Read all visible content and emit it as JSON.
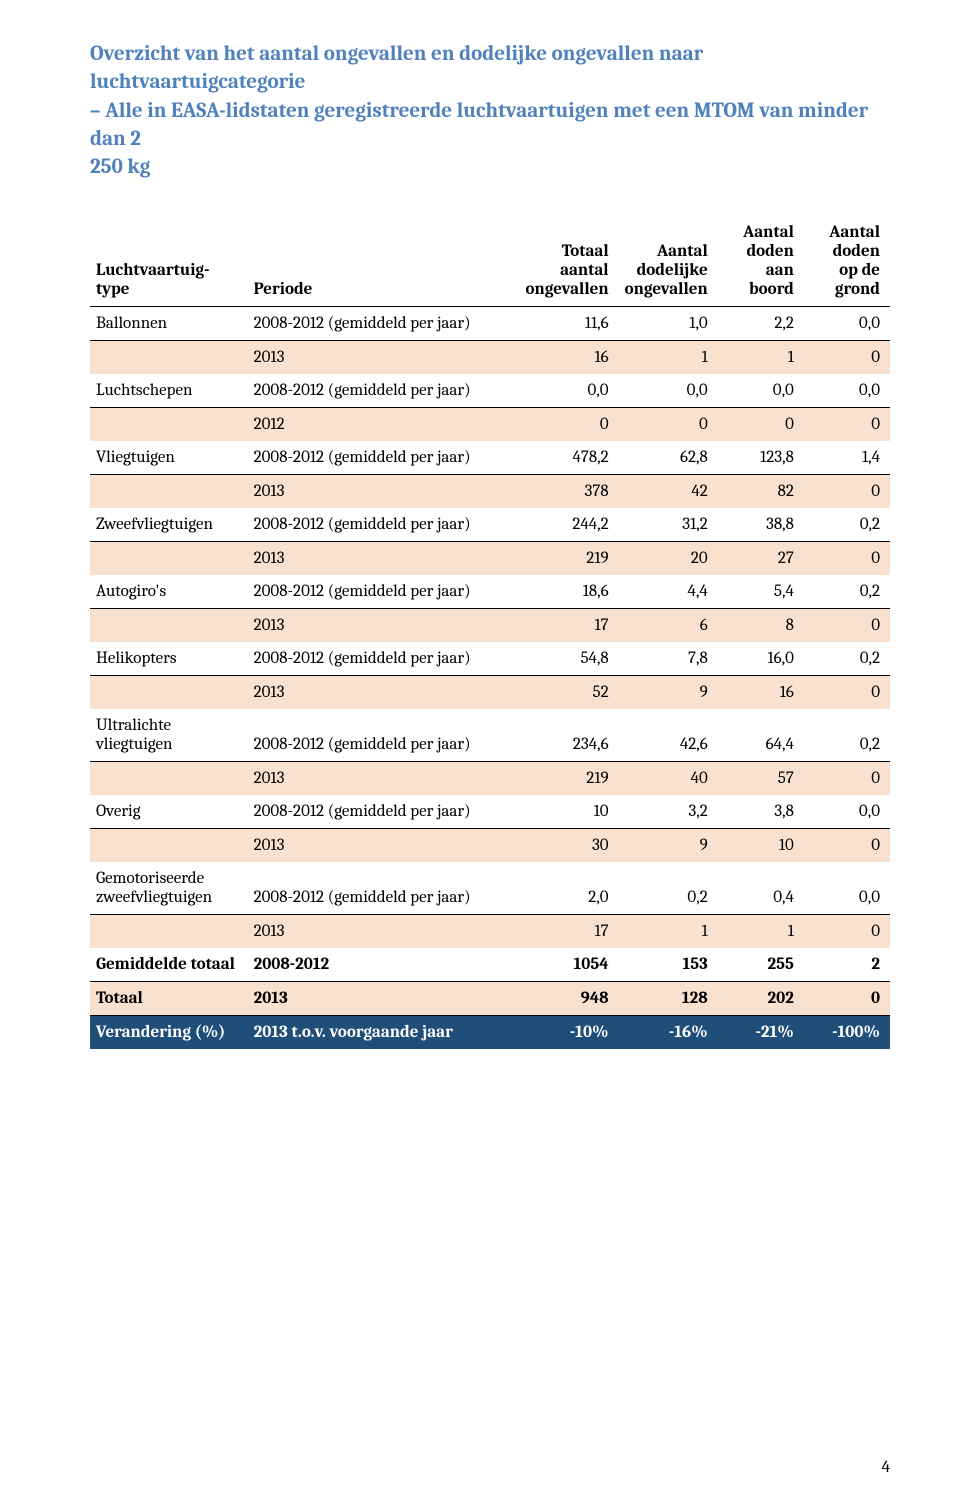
{
  "title_lines": [
    "Overzicht van het aantal ongevallen en dodelijke ongevallen naar luchtvaartuigcategorie",
    "– Alle in EASA-lidstaten geregistreerde luchtvaartuigen met een MTOM van minder dan 2",
    "250 kg"
  ],
  "columns": {
    "type": "Luchtvaartuig-\ntype",
    "periode": "Periode",
    "totaal": "Totaal\naantal\nongevallen",
    "dodelijke": "Aantal\ndodelijke\nongevallen",
    "doden_boord": "Aantal\ndoden\naan\nboord",
    "doden_grond": "Aantal\ndoden\nop de\ngrond"
  },
  "rows": [
    {
      "type": "Ballonnen",
      "periode": "2008-2012 (gemiddeld per jaar)",
      "totaal": "11,6",
      "dodelijke": "1,0",
      "doden_boord": "2,2",
      "doden_grond": "0,0",
      "hi": false,
      "rule": true
    },
    {
      "type": "",
      "periode": "2013",
      "totaal": "16",
      "dodelijke": "1",
      "doden_boord": "1",
      "doden_grond": "0",
      "hi": true,
      "rule": false
    },
    {
      "type": "Luchtschepen",
      "periode": "2008-2012 (gemiddeld per jaar)",
      "totaal": "0,0",
      "dodelijke": "0,0",
      "doden_boord": "0,0",
      "doden_grond": "0,0",
      "hi": false,
      "rule": true
    },
    {
      "type": "",
      "periode": "2012",
      "totaal": "0",
      "dodelijke": "0",
      "doden_boord": "0",
      "doden_grond": "0",
      "hi": true,
      "rule": false
    },
    {
      "type": "Vliegtuigen",
      "periode": "2008-2012 (gemiddeld per jaar)",
      "totaal": "478,2",
      "dodelijke": "62,8",
      "doden_boord": "123,8",
      "doden_grond": "1,4",
      "hi": false,
      "rule": true
    },
    {
      "type": "",
      "periode": "2013",
      "totaal": "378",
      "dodelijke": "42",
      "doden_boord": "82",
      "doden_grond": "0",
      "hi": true,
      "rule": false
    },
    {
      "type": "Zweefvliegtuigen",
      "periode": "2008-2012 (gemiddeld per jaar)",
      "totaal": "244,2",
      "dodelijke": "31,2",
      "doden_boord": "38,8",
      "doden_grond": "0,2",
      "hi": false,
      "rule": true
    },
    {
      "type": "",
      "periode": "2013",
      "totaal": "219",
      "dodelijke": "20",
      "doden_boord": "27",
      "doden_grond": "0",
      "hi": true,
      "rule": false
    },
    {
      "type": "Autogiro's",
      "periode": "2008-2012 (gemiddeld per jaar)",
      "totaal": "18,6",
      "dodelijke": "4,4",
      "doden_boord": "5,4",
      "doden_grond": "0,2",
      "hi": false,
      "rule": true
    },
    {
      "type": "",
      "periode": "2013",
      "totaal": "17",
      "dodelijke": "6",
      "doden_boord": "8",
      "doden_grond": "0",
      "hi": true,
      "rule": false
    },
    {
      "type": "Helikopters",
      "periode": "2008-2012 (gemiddeld per jaar)",
      "totaal": "54,8",
      "dodelijke": "7,8",
      "doden_boord": "16,0",
      "doden_grond": "0,2",
      "hi": false,
      "rule": true
    },
    {
      "type": "",
      "periode": "2013",
      "totaal": "52",
      "dodelijke": "9",
      "doden_boord": "16",
      "doden_grond": "0",
      "hi": true,
      "rule": false
    },
    {
      "type": "Ultralichte vliegtuigen",
      "periode": "2008-2012 (gemiddeld per jaar)",
      "totaal": "234,6",
      "dodelijke": "42,6",
      "doden_boord": "64,4",
      "doden_grond": "0,2",
      "hi": false,
      "rule": true
    },
    {
      "type": "",
      "periode": "2013",
      "totaal": "219",
      "dodelijke": "40",
      "doden_boord": "57",
      "doden_grond": "0",
      "hi": true,
      "rule": false
    },
    {
      "type": "Overig",
      "periode": "2008-2012 (gemiddeld per jaar)",
      "totaal": "10",
      "dodelijke": "3,2",
      "doden_boord": "3,8",
      "doden_grond": "0,0",
      "hi": false,
      "rule": true
    },
    {
      "type": "",
      "periode": "2013",
      "totaal": "30",
      "dodelijke": "9",
      "doden_boord": "10",
      "doden_grond": "0",
      "hi": true,
      "rule": false
    },
    {
      "type": "Gemotoriseerde zweefvliegtuigen",
      "periode": "2008-2012 (gemiddeld per jaar)",
      "totaal": "2,0",
      "dodelijke": "0,2",
      "doden_boord": "0,4",
      "doden_grond": "0,0",
      "hi": false,
      "rule": true
    },
    {
      "type": "",
      "periode": "2013",
      "totaal": "17",
      "dodelijke": "1",
      "doden_boord": "1",
      "doden_grond": "0",
      "hi": true,
      "rule": false
    },
    {
      "type": "Gemiddelde totaal",
      "periode": "2008-2012",
      "totaal": "1054",
      "dodelijke": "153",
      "doden_boord": "255",
      "doden_grond": "2",
      "hi": false,
      "rule": false,
      "bold": true
    }
  ],
  "totalrow": {
    "type": "Totaal",
    "periode": "2013",
    "totaal": "948",
    "dodelijke": "128",
    "doden_boord": "202",
    "doden_grond": "0"
  },
  "darkrow": {
    "type": "Verandering (%)",
    "periode": "2013 t.o.v. voorgaande jaar",
    "totaal": "-10%",
    "dodelijke": "-16%",
    "doden_boord": "-21%",
    "doden_grond": "-100%"
  },
  "page_number": "4",
  "colors": {
    "title": "#4f81bd",
    "highlight": "#f8e1cf",
    "darkrow_bg": "#1f4e79",
    "darkrow_fg": "#ffffff"
  }
}
